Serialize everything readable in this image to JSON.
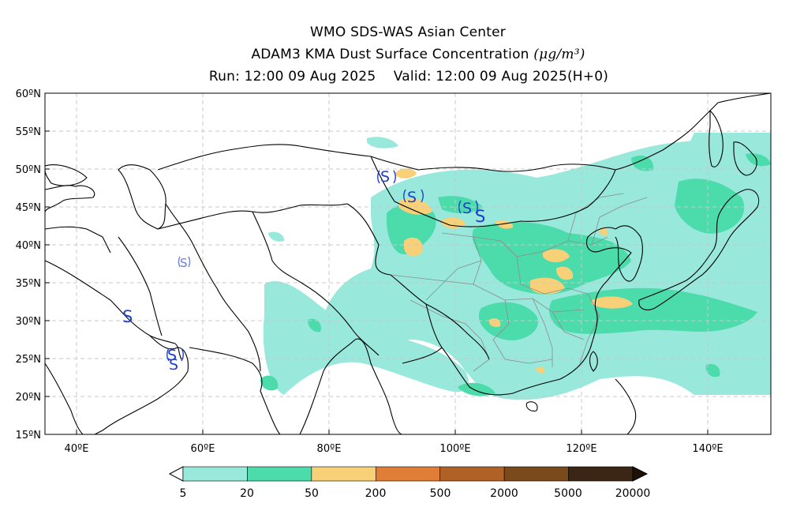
{
  "header": {
    "title": "WMO SDS-WAS Asian Center",
    "product_name": "ADAM3 KMA Dust Surface Concentration",
    "unit": "(μg/m³)",
    "run": "Run: 12:00 09 Aug 2025",
    "valid": "Valid: 12:00 09 Aug 2025(H+0)"
  },
  "map": {
    "lat_ticks": [
      "60ºN",
      "55ºN",
      "50ºN",
      "45ºN",
      "40ºN",
      "35ºN",
      "30ºN",
      "25ºN",
      "20ºN",
      "15ºN"
    ],
    "lon_ticks": [
      "40ºE",
      "60ºE",
      "80ºE",
      "100ºE",
      "120ºE",
      "140ºE"
    ],
    "lon_range": [
      35,
      150
    ],
    "lat_range": [
      15,
      60
    ],
    "grid": true,
    "storm_marker_glyph": "S",
    "colors": {
      "coast": "#000000",
      "province": "#8c8c8c",
      "grid": "#c8c8c8",
      "marker": "#1f3fcf"
    }
  },
  "colorbar": {
    "labels": [
      "5",
      "20",
      "50",
      "200",
      "500",
      "2000",
      "5000",
      "20000"
    ],
    "colors": [
      "#98e8dc",
      "#4cdbab",
      "#f8d078",
      "#e07d36",
      "#b06226",
      "#7a4a1c",
      "#3b2514"
    ],
    "extend": "both"
  }
}
